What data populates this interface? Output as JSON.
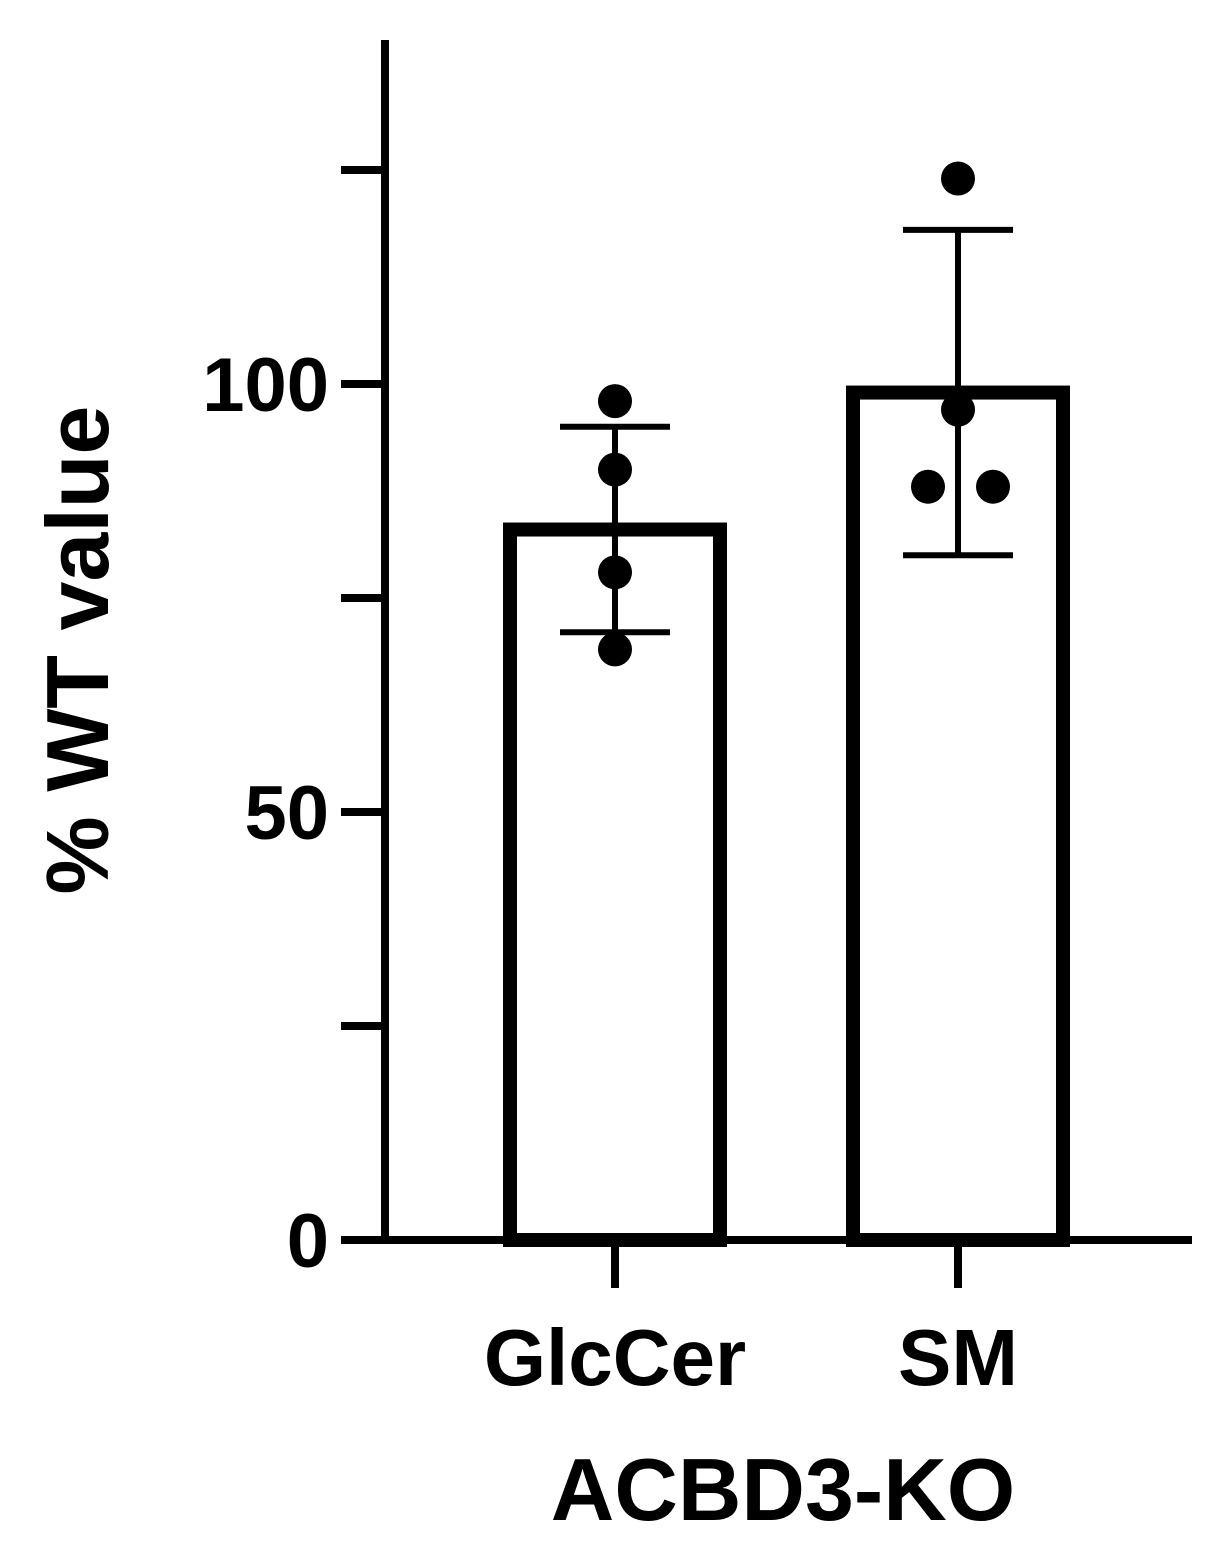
{
  "chart_data": {
    "type": "bar",
    "title": "",
    "xlabel": "ACBD3-KO",
    "ylabel": "% WT value",
    "categories": [
      "GlcCer",
      "SM"
    ],
    "values": [
      83,
      99
    ],
    "error": [
      12,
      19
    ],
    "points": [
      [
        98,
        90,
        78,
        69
      ],
      [
        124,
        97,
        88,
        88
      ]
    ],
    "ylim": [
      0,
      150
    ],
    "yticks": [
      0,
      25,
      50,
      75,
      100,
      125
    ],
    "ytick_labels": [
      "0",
      "",
      "50",
      "",
      "100",
      ""
    ],
    "grid": false,
    "legend": "none",
    "colors": {
      "bar_fill": "#ffffff",
      "bar_stroke": "#000000",
      "point": "#000000",
      "axis": "#000000"
    }
  }
}
